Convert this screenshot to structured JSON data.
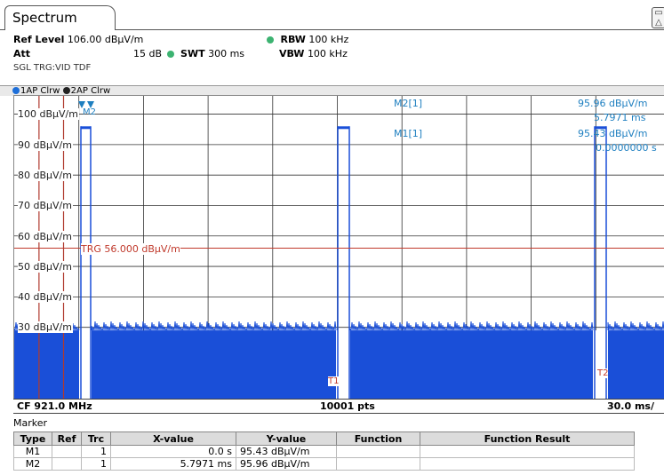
{
  "tab": {
    "label": "Spectrum"
  },
  "settings": {
    "ref_level_label": "Ref Level",
    "ref_level_value": "106.00 dBµV/m",
    "att_label": "Att",
    "att_value": "15 dB",
    "swt_label": "SWT",
    "swt_value": "300 ms",
    "rbw_label": "RBW",
    "rbw_value": "100 kHz",
    "vbw_label": "VBW",
    "vbw_value": "100 kHz",
    "mode": "SGL TRG:VID TDF"
  },
  "traces": [
    {
      "label": "1AP Clrw",
      "color": "#1e6fd9"
    },
    {
      "label": "2AP Clrw",
      "color": "#222222"
    }
  ],
  "y_axis": {
    "labels": [
      "100 dBµV/m",
      "90 dBµV/m",
      "80 dBµV/m",
      "70 dBµV/m",
      "60 dBµV/m",
      "50 dBµV/m",
      "40 dBµV/m",
      "30 dBµV/m"
    ]
  },
  "trigger_line": {
    "label": "TRG 56.000 dBµV/m",
    "level_dbuv_m": 56.0,
    "color": "#c0392b"
  },
  "time_lines": [
    {
      "label": "T1",
      "time_ms": 11.5
    },
    {
      "label": "T2",
      "time_ms": 22.9
    }
  ],
  "marker_info": {
    "m2_name": "M2[1]",
    "m2_level": "95.96 dBµV/m",
    "m2_time": "5.7971 ms",
    "m1_name": "M1[1]",
    "m1_level": "95.43 dBµV/m",
    "m1_time": "0.0000000 s",
    "marker_tag": "M2"
  },
  "bottom": {
    "cf": "CF 921.0 MHz",
    "pts": "10001 pts",
    "span": "30.0 ms/"
  },
  "marker_table": {
    "title": "Marker",
    "headers": [
      "Type",
      "Ref",
      "Trc",
      "X-value",
      "Y-value",
      "Function",
      "Function Result"
    ],
    "rows": [
      {
        "type": "M1",
        "ref": "",
        "trc": "1",
        "x": "0.0 s",
        "y": "95.43 dBµV/m",
        "func": "",
        "result": ""
      },
      {
        "type": "M2",
        "ref": "",
        "trc": "1",
        "x": "5.7971 ms",
        "y": "95.96 dBµV/m",
        "func": "",
        "result": ""
      }
    ]
  },
  "colors": {
    "trace_fill": "#1a4fd8",
    "grid": "#333333",
    "marker": "#1e7fc0",
    "trigger": "#c0392b"
  }
}
